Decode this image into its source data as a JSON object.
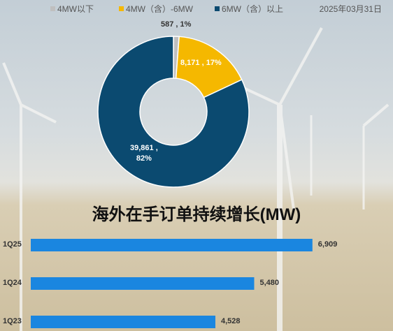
{
  "chart_data": [
    {
      "type": "donut",
      "date": "2025年03月31日",
      "categories": [
        "4MW以下",
        "4MW（含）-6MW",
        "6MW（含）以上"
      ],
      "values": [
        587,
        8171,
        39861
      ],
      "value_labels": [
        "587 , 1%",
        "8,171 , 17%",
        "39,861 ,\n82%"
      ],
      "colors": [
        "#bfbfbf",
        "#f5b800",
        "#0b4a70"
      ]
    },
    {
      "type": "hbar",
      "title": "海外在手订单持续增长(MW)",
      "categories": [
        "1Q25",
        "1Q24",
        "1Q23"
      ],
      "values": [
        6909,
        5480,
        4528
      ],
      "value_labels": [
        "6,909",
        "5,480",
        "4,528"
      ],
      "color": "#1a86e0"
    }
  ]
}
